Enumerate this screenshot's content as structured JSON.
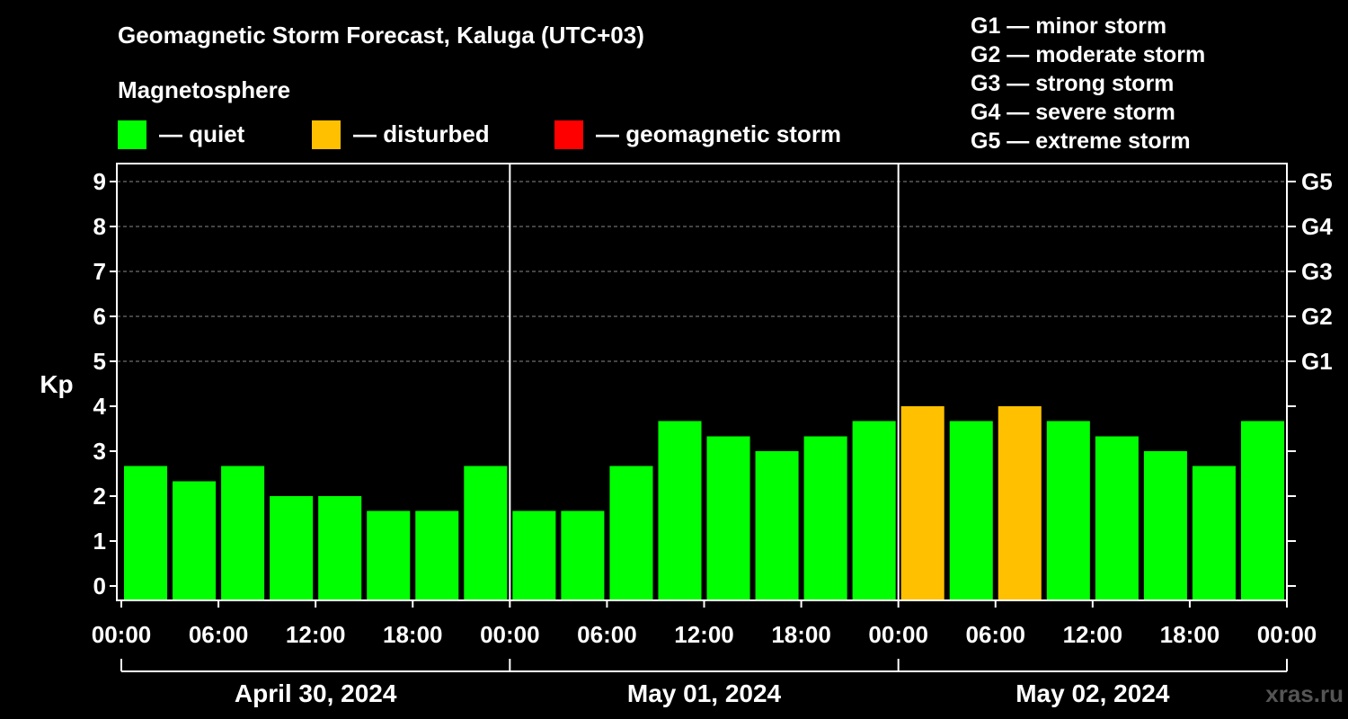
{
  "chart_data": {
    "type": "bar",
    "title": "Geomagnetic Storm Forecast, Kaluga (UTC+03)",
    "legend_title": "Magnetosphere",
    "legend": [
      {
        "label": "— quiet",
        "color": "#00ff00"
      },
      {
        "label": "— disturbed",
        "color": "#ffc000"
      },
      {
        "label": "— geomagnetic storm",
        "color": "#ff0000"
      }
    ],
    "storm_scale": [
      "G1 — minor storm",
      "G2 — moderate storm",
      "G3 — strong storm",
      "G4 — severe storm",
      "G5 — extreme storm"
    ],
    "ylabel": "Kp",
    "ylim": [
      0,
      9
    ],
    "y_ticks": [
      "0",
      "1",
      "2",
      "3",
      "4",
      "5",
      "6",
      "7",
      "8",
      "9"
    ],
    "right_ticks": [
      {
        "kp": 5,
        "label": "G1"
      },
      {
        "kp": 6,
        "label": "G2"
      },
      {
        "kp": 7,
        "label": "G3"
      },
      {
        "kp": 8,
        "label": "G4"
      },
      {
        "kp": 9,
        "label": "G5"
      }
    ],
    "grid": "dashed at Kp 5-9",
    "x_ticks": [
      "00:00",
      "06:00",
      "12:00",
      "18:00",
      "00:00",
      "06:00",
      "12:00",
      "18:00",
      "00:00",
      "06:00",
      "12:00",
      "18:00",
      "00:00"
    ],
    "days": [
      "April 30, 2024",
      "May 01, 2024",
      "May 02, 2024"
    ],
    "interval_hours": 3,
    "values": [
      2.67,
      2.33,
      2.67,
      2.0,
      2.0,
      1.67,
      1.67,
      2.67,
      1.67,
      1.67,
      2.67,
      3.67,
      3.33,
      3.0,
      3.33,
      3.67,
      4.0,
      3.67,
      4.0,
      3.67,
      3.33,
      3.0,
      2.67,
      3.67
    ],
    "colors": {
      "quiet": "#00ff00",
      "disturbed": "#ffc000",
      "storm": "#ff0000",
      "grid": "#888888",
      "axis": "#ffffff"
    },
    "watermark": "xras.ru"
  }
}
